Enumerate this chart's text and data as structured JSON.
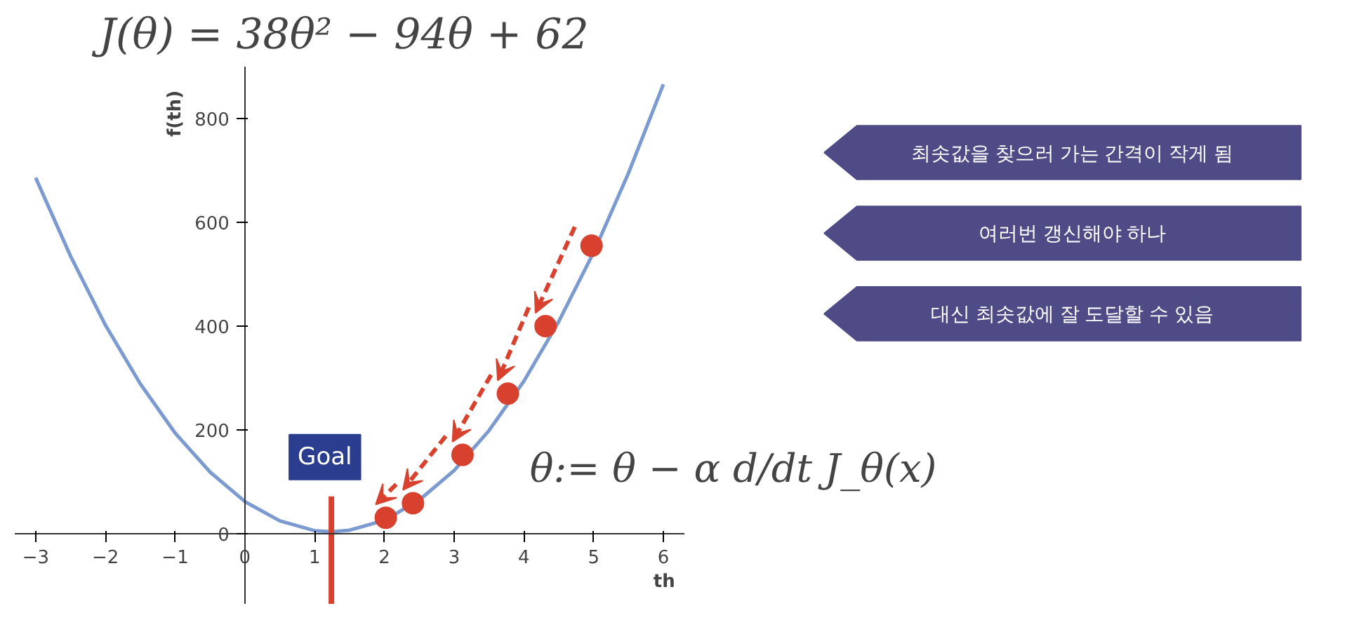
{
  "chart_data": {
    "type": "line",
    "title": "J(θ) = 38θ² − 94θ + 62",
    "xlabel": "th",
    "ylabel": "f(th)",
    "x": [
      -3,
      -2.5,
      -2,
      -1.5,
      -1,
      -0.5,
      0,
      0.5,
      1,
      1.25,
      1.5,
      2,
      2.5,
      3,
      3.5,
      4,
      4.5,
      5,
      5.5,
      6
    ],
    "series": [
      {
        "color": "#7b9bd0",
        "values": [
          686,
          535,
          402,
          289,
          194,
          119,
          62,
          25,
          6,
          4,
          7,
          26,
          65,
          122,
          199,
          294,
          409,
          542,
          695,
          866
        ]
      },
      {
        "type": "scatter",
        "marker": "circle",
        "color": "#d9412f",
        "x": [
          4.97,
          4.31,
          3.77,
          3.12,
          2.41,
          2.02
        ],
        "values": [
          555,
          400,
          270,
          152,
          59,
          31
        ]
      }
    ],
    "xlim": [
      -3.3,
      6.3
    ],
    "ylim": [
      -135,
      900
    ],
    "xticks": [
      {
        "value": -3,
        "label": "−3"
      },
      {
        "value": -2,
        "label": "−2"
      },
      {
        "value": -1,
        "label": "−1"
      },
      0,
      1,
      2,
      3,
      4,
      5,
      6
    ],
    "yticks": [
      0,
      200,
      400,
      600,
      800
    ],
    "ref_lines": [
      {
        "axis": "x",
        "value": 1.24,
        "label": "Goal",
        "color": "#d9412f"
      }
    ],
    "annotations": [
      "최솟값을 찾으러 가는 간격이 작게 됨",
      "여러번 갱신해야 하나",
      "대신 최솟값에 잘 도달할 수 있음",
      "θ:= θ − α d/dt J_θ(x)"
    ],
    "line_style": "solid"
  }
}
